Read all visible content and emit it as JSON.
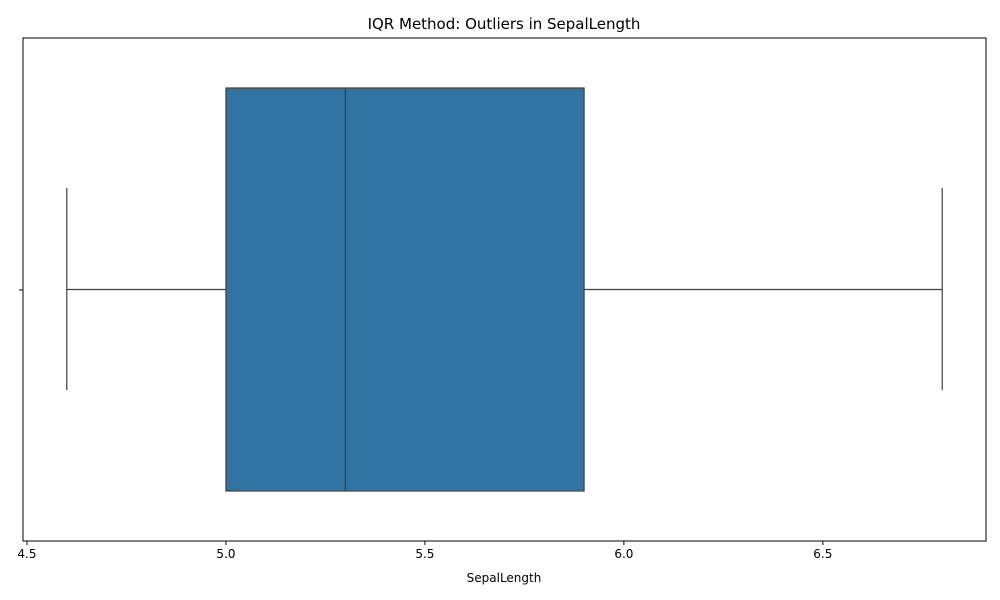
{
  "chart_data": {
    "type": "boxplot",
    "title": "IQR Method: Outliers in SepalLength",
    "xlabel": "SepalLength",
    "ylabel": "",
    "xlim": [
      4.49,
      6.91
    ],
    "xticks": [
      "4.5",
      "5.0",
      "5.5",
      "6.0",
      "6.5"
    ],
    "box": {
      "whisker_low": 4.6,
      "q1": 5.0,
      "median": 5.3,
      "q3": 5.9,
      "whisker_high": 6.8
    },
    "outliers": [],
    "box_color": "#3274a1",
    "line_color": "#3f3f3f",
    "grid": false
  }
}
